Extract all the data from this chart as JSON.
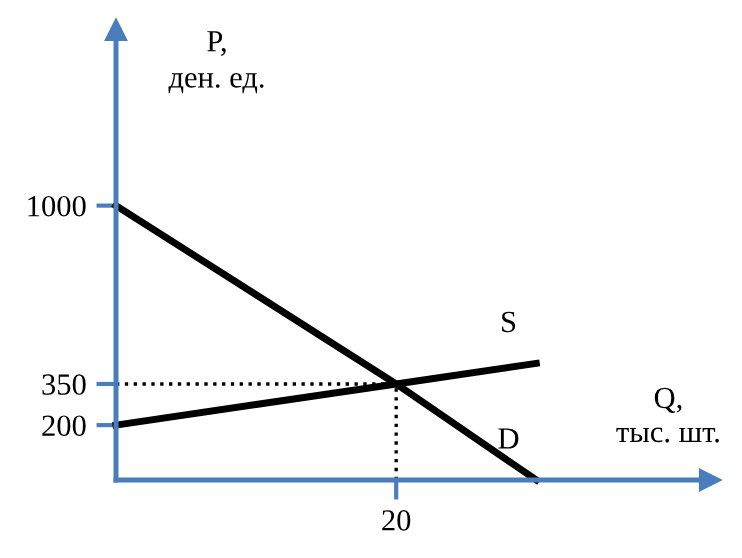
{
  "chart_data": {
    "type": "line",
    "xlabel": "Q,\nтыс. шт.",
    "ylabel": "P,\nден. ед.",
    "categories": [
      null,
      null,
      "20",
      null,
      null
    ],
    "ylim": [
      0,
      1640
    ],
    "yticks": [
      200,
      350,
      1000
    ],
    "grid": false,
    "legend": false,
    "marker": "none",
    "ref_lines": [
      {
        "axis": "y",
        "value": 350,
        "line_style": "dotted",
        "color": "#000000"
      },
      {
        "axis": "x",
        "value": "20",
        "line_style": "dotted",
        "color": "#000000"
      }
    ],
    "series": [
      {
        "name": "S",
        "color": "#000000",
        "values": [
          200,
          275,
          350,
          425,
          null
        ]
      },
      {
        "name": "D",
        "color": "#000000",
        "values": [
          1000,
          675,
          350,
          0,
          null
        ]
      }
    ]
  }
}
